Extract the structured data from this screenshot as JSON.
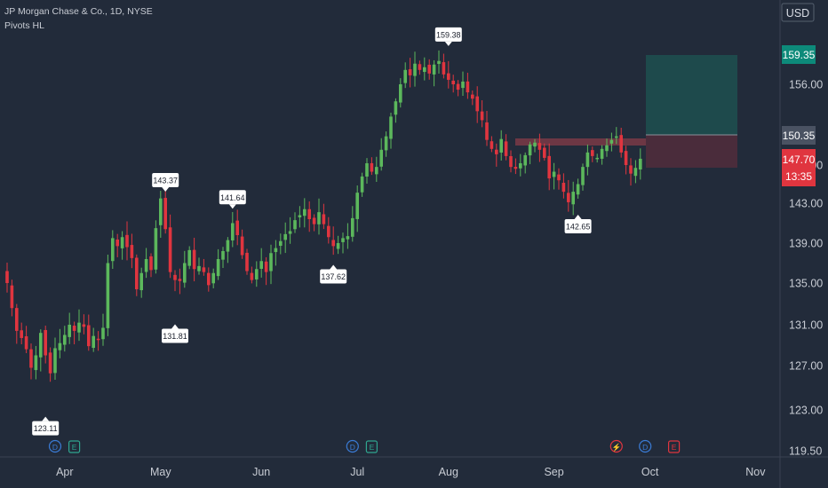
{
  "header": {
    "title": "JP Morgan Chase & Co., 1D, NYSE",
    "indicator": "Pivots HL"
  },
  "currency": "USD",
  "colors": {
    "background": "#222b3a",
    "up": "#5cb85c",
    "down": "#e0353f",
    "profit_zone": "#1e4a4c",
    "loss_zone": "#4a2c3b",
    "resistance_zone": "#7a3a47",
    "text": "#c8ccd4",
    "axis_line": "#3a4252",
    "price_green": "#0d8a7a",
    "price_red": "#e0353f",
    "current_gray": "#4a5262"
  },
  "price_badges": {
    "target": "159.35",
    "entry": "150.35",
    "current": "147.70",
    "countdown": "13:35"
  },
  "chart_data": {
    "type": "candlestick",
    "title": "JP Morgan Chase & Co., 1D, NYSE",
    "ylim": [
      119.5,
      163.5
    ],
    "y_ticks": [
      {
        "value": 156.0,
        "label": "156.00"
      },
      {
        "value": 147.0,
        "label": "147.00"
      },
      {
        "value": 143.0,
        "label": "143.00"
      },
      {
        "value": 139.0,
        "label": "139.00"
      },
      {
        "value": 135.0,
        "label": "135.00"
      },
      {
        "value": 131.0,
        "label": "131.00"
      },
      {
        "value": 127.0,
        "label": "127.00"
      },
      {
        "value": 123.0,
        "label": "123.00"
      },
      {
        "value": 119.5,
        "label": "119.50"
      }
    ],
    "x_labels": [
      {
        "label": "Apr",
        "index": 12
      },
      {
        "label": "May",
        "index": 32
      },
      {
        "label": "Jun",
        "index": 53
      },
      {
        "label": "Jul",
        "index": 73
      },
      {
        "label": "Aug",
        "index": 92
      },
      {
        "label": "Sep",
        "index": 114
      },
      {
        "label": "Oct",
        "index": 134
      },
      {
        "label": "Nov",
        "index": 156
      }
    ],
    "pivots": [
      {
        "label": "143.37",
        "index": 33,
        "price": 143.37,
        "type": "high"
      },
      {
        "label": "131.81",
        "index": 35,
        "price": 131.81,
        "type": "low"
      },
      {
        "label": "141.64",
        "index": 47,
        "price": 141.64,
        "type": "high"
      },
      {
        "label": "137.62",
        "index": 68,
        "price": 137.62,
        "type": "low"
      },
      {
        "label": "159.38",
        "index": 92,
        "price": 159.38,
        "type": "high"
      },
      {
        "label": "142.65",
        "index": 119,
        "price": 142.65,
        "type": "low"
      },
      {
        "label": "123.11",
        "index": 8,
        "price": 123.11,
        "type": "low"
      }
    ],
    "closes": [
      135.0,
      132.6,
      130.4,
      129.7,
      128.6,
      126.8,
      128.0,
      130.2,
      128.0,
      126.3,
      128.7,
      129.2,
      130.0,
      131.0,
      130.4,
      131.2,
      130.8,
      128.9,
      129.9,
      129.5,
      130.7,
      137.0,
      139.5,
      138.7,
      139.6,
      138.6,
      137.5,
      134.4,
      136.0,
      137.4,
      136.3,
      140.5,
      143.5,
      140.4,
      136.1,
      135.3,
      135.2,
      137.0,
      138.3,
      136.4,
      136.7,
      136.1,
      134.8,
      136.0,
      137.4,
      138.2,
      139.3,
      141.0,
      139.8,
      137.8,
      136.2,
      135.3,
      136.4,
      137.2,
      136.1,
      138.0,
      138.5,
      139.2,
      139.9,
      140.2,
      141.3,
      141.8,
      142.4,
      141.4,
      140.9,
      142.1,
      140.9,
      139.6,
      138.7,
      139.0,
      139.5,
      139.7,
      141.5,
      144.1,
      145.8,
      147.2,
      146.3,
      146.8,
      148.7,
      150.2,
      152.4,
      154.1,
      156.0,
      157.6,
      157.0,
      158.3,
      157.6,
      157.9,
      157.2,
      158.2,
      158.6,
      157.1,
      156.5,
      156.0,
      155.4,
      156.3,
      155.1,
      154.4,
      153.0,
      152.0,
      149.8,
      148.8,
      148.2,
      149.9,
      148.0,
      146.8,
      146.6,
      147.2,
      148.1,
      149.3,
      149.5,
      148.7,
      147.8,
      145.6,
      146.3,
      145.4,
      144.2,
      143.1,
      144.2,
      145.0,
      146.8,
      148.4,
      148.0,
      147.8,
      148.8,
      149.2,
      149.8,
      150.2,
      148.4,
      147.0,
      146.1,
      146.7,
      147.7
    ]
  },
  "event_markers": [
    {
      "icon": "D",
      "kind": "dividend",
      "index": 10
    },
    {
      "icon": "E",
      "kind": "earnings",
      "index": 14
    },
    {
      "icon": "D",
      "kind": "dividend",
      "index": 72
    },
    {
      "icon": "E",
      "kind": "earnings",
      "index": 76
    },
    {
      "icon": "⚡",
      "kind": "split",
      "index": 127
    },
    {
      "icon": "D",
      "kind": "dividend",
      "index": 133
    },
    {
      "icon": "E",
      "kind": "earnings",
      "index": 139
    }
  ]
}
